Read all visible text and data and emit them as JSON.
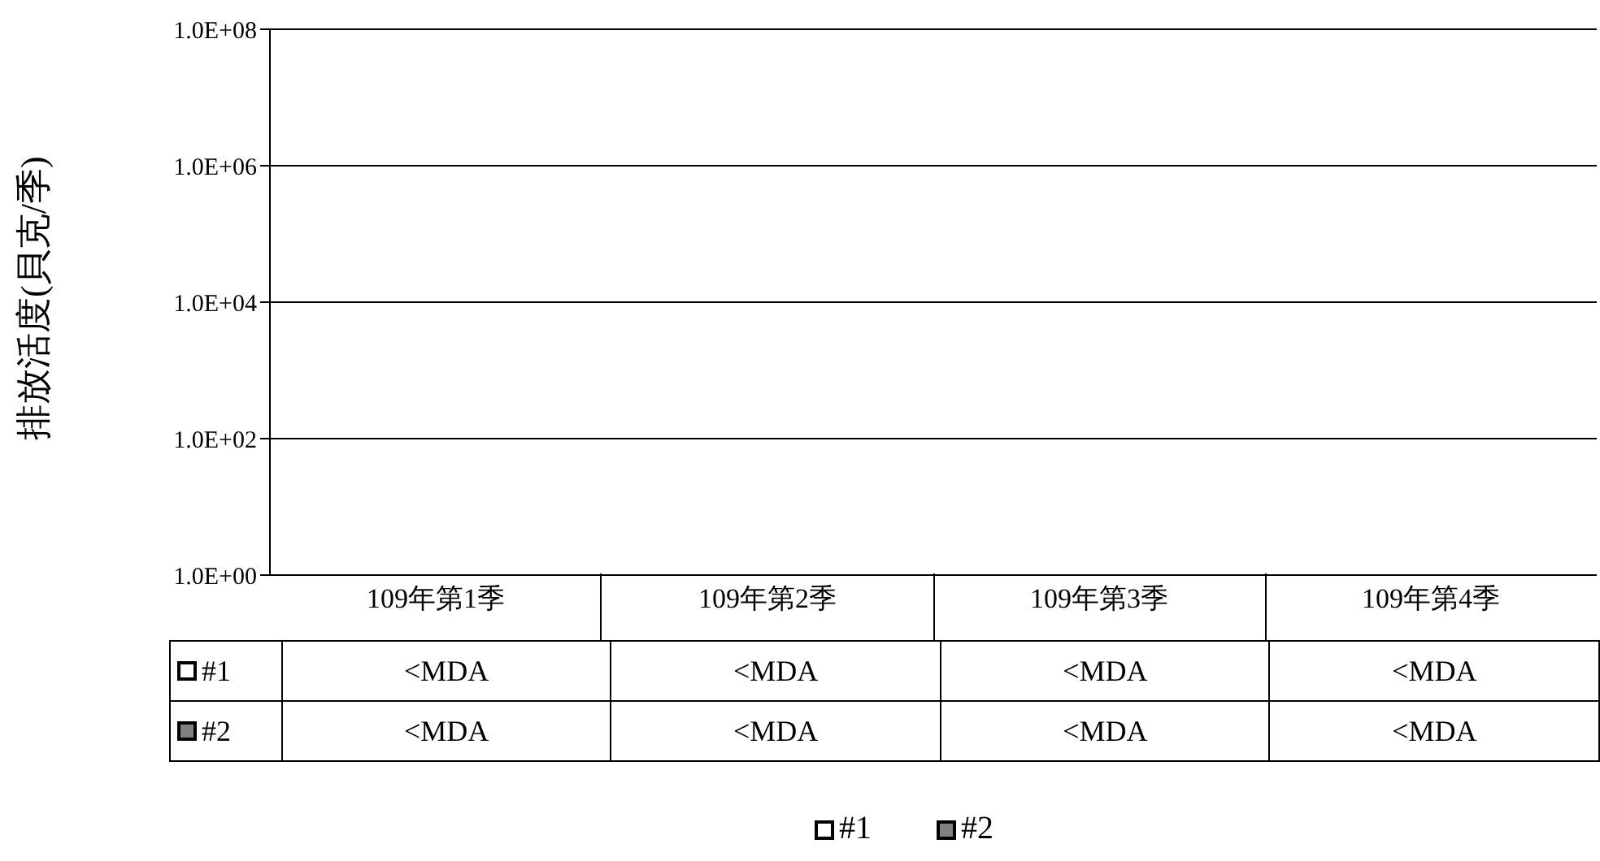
{
  "chart_data": {
    "type": "bar",
    "ylabel": "排放活度(貝克/季)",
    "categories": [
      "109年第1季",
      "109年第2季",
      "109年第3季",
      "109年第4季"
    ],
    "series": [
      {
        "name": "#1",
        "color": "#ffffff",
        "values": [
          null,
          null,
          null,
          null
        ],
        "value_labels": [
          "<MDA",
          "<MDA",
          "<MDA",
          "<MDA"
        ]
      },
      {
        "name": "#2",
        "color": "#808080",
        "values": [
          null,
          null,
          null,
          null
        ],
        "value_labels": [
          "<MDA",
          "<MDA",
          "<MDA",
          "<MDA"
        ]
      }
    ],
    "log": true,
    "ylim": [
      1,
      100000000
    ],
    "yticks": [
      {
        "value": 1,
        "label": "1.0E+00"
      },
      {
        "value": 100,
        "label": "1.0E+02"
      },
      {
        "value": 10000,
        "label": "1.0E+04"
      },
      {
        "value": 1000000,
        "label": "1.0E+06"
      },
      {
        "value": 100000000,
        "label": "1.0E+08"
      }
    ],
    "grid": "y",
    "legend": "bottom"
  }
}
